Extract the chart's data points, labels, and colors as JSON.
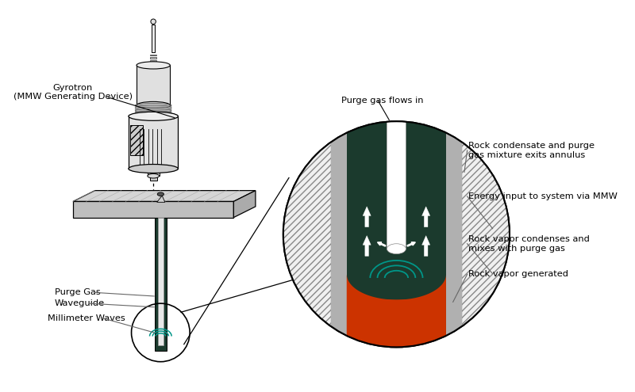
{
  "bg_color": "#ffffff",
  "line_color": "#000000",
  "dark_green": "#1b3a2d",
  "teal": "#009688",
  "orange_red": "#cc3300",
  "gray_rock": "#b8b8b8",
  "gray_wall": "#a0a0a0",
  "gray_mid": "#909090",
  "white": "#ffffff",
  "annotations": {
    "gyrotron": "Gyrotron\n(MMW Generating Device)",
    "purge_gas_flows": "Purge gas flows in",
    "rock_condensate": "Rock condensate and purge\ngas mixture exits annulus",
    "energy_input": "Energy input to system via MMW",
    "rock_vapor_condenses": "Rock vapor condenses and\nmixes with purge gas",
    "rock_vapor_generated": "Rock vapor generated",
    "purge_gas": "Purge Gas",
    "waveguide": "Waveguide",
    "millimeter_waves": "Millimeter Waves"
  },
  "font_size": 8.2
}
